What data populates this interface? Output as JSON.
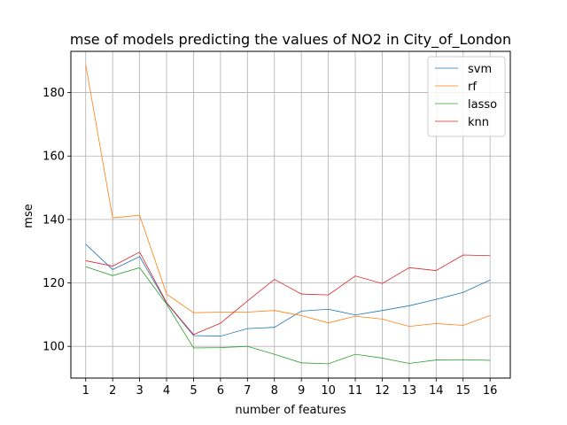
{
  "chart_data": {
    "type": "line",
    "title": "mse of models predicting the values of NO2 in City_of_London",
    "xlabel": "number of features",
    "ylabel": "mse",
    "x": [
      1,
      2,
      3,
      4,
      5,
      6,
      7,
      8,
      9,
      10,
      11,
      12,
      13,
      14,
      15,
      16
    ],
    "xlim": [
      0.45,
      16.75
    ],
    "ylim": [
      90,
      193
    ],
    "yticks": [
      100,
      120,
      140,
      160,
      180
    ],
    "grid": true,
    "legend_position": "top-right",
    "series": [
      {
        "name": "svm",
        "color": "#1f77b4",
        "values": [
          132.2,
          124.2,
          128.3,
          113.7,
          103.4,
          103.2,
          105.6,
          106.0,
          111.1,
          111.7,
          109.9,
          111.3,
          112.8,
          114.8,
          117.0,
          120.9
        ]
      },
      {
        "name": "rf",
        "color": "#ff7f0e",
        "values": [
          188.8,
          140.5,
          141.3,
          116.5,
          110.6,
          110.8,
          110.8,
          111.3,
          109.7,
          107.4,
          109.5,
          108.6,
          106.3,
          107.2,
          106.6,
          109.7
        ]
      },
      {
        "name": "lasso",
        "color": "#2ca02c",
        "values": [
          125.1,
          122.3,
          124.8,
          113.3,
          99.5,
          99.6,
          100.0,
          97.5,
          94.8,
          94.5,
          97.5,
          96.3,
          94.6,
          95.7,
          95.8,
          95.6
        ]
      },
      {
        "name": "knn",
        "color": "#d62728",
        "values": [
          127.0,
          125.3,
          129.7,
          113.8,
          103.7,
          107.3,
          114.3,
          121.1,
          116.5,
          116.2,
          122.2,
          119.8,
          124.8,
          123.9,
          128.8,
          128.6
        ]
      }
    ]
  }
}
